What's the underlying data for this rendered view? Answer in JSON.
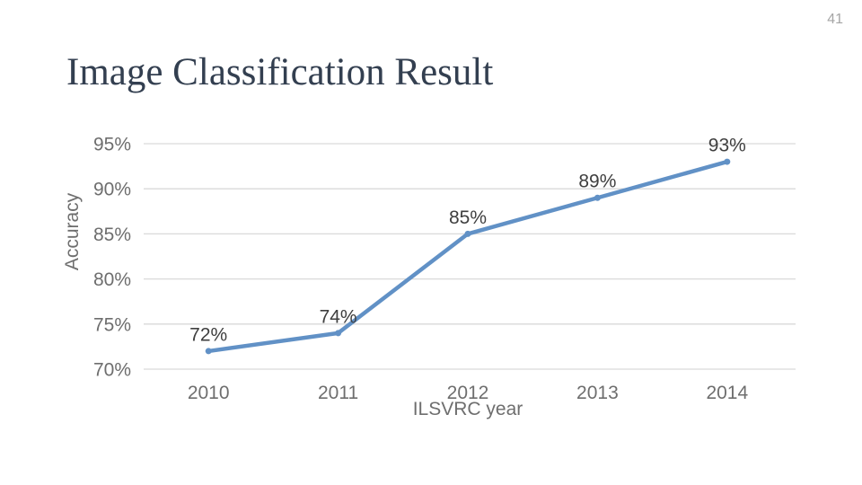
{
  "page_number": "41",
  "title": "Image Classification Result",
  "colors": {
    "background": "#FFFFFF",
    "title_text": "#333F50",
    "page_number_text": "#A6A6A6",
    "series_line": "#6191C6",
    "gridline": "#D9D9D9",
    "axis_text": "#6E6E6E",
    "data_label_text": "#3F3F3F"
  },
  "chart_data": {
    "type": "line",
    "title": "",
    "categories": [
      "2010",
      "2011",
      "2012",
      "2013",
      "2014"
    ],
    "series": [
      {
        "name": "Accuracy",
        "values": [
          72,
          74,
          85,
          89,
          93
        ]
      }
    ],
    "data_labels": [
      "72%",
      "74%",
      "85%",
      "89%",
      "93%"
    ],
    "xlabel": "ILSVRC year",
    "ylabel": "Accuracy",
    "ylim": [
      70,
      95
    ],
    "ytick_step": 5,
    "ytick_labels": [
      "70%",
      "75%",
      "80%",
      "85%",
      "90%",
      "95%"
    ],
    "grid": true,
    "legend": false,
    "marker": "circle"
  }
}
